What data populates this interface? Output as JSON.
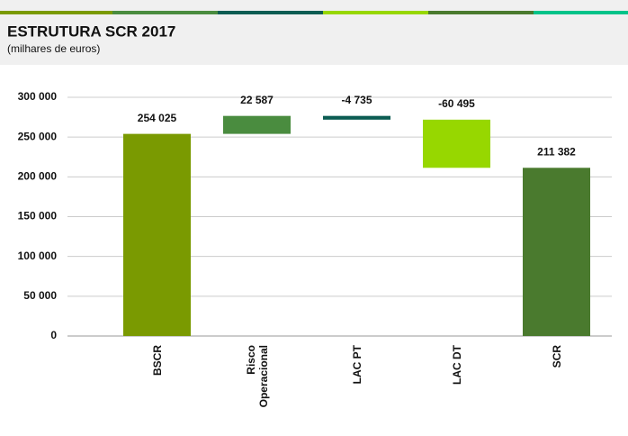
{
  "chart_data": {
    "type": "waterfall",
    "title": "ESTRUTURA SCR 2017",
    "subtitle": "(milhares de euros)",
    "categories": [
      "BSCR",
      "Risco\nOperacional",
      "LAC PT",
      "LAC DT",
      "SCR"
    ],
    "values": [
      254025,
      22587,
      -4735,
      -60495,
      211382
    ],
    "value_labels": [
      "254 025",
      "22 587",
      "-4 735",
      "-60 495",
      "211 382"
    ],
    "is_total": [
      true,
      false,
      false,
      false,
      true
    ],
    "colors": [
      "#7a9a01",
      "#4a8c3f",
      "#0b5c52",
      "#97d700",
      "#4a7a2e"
    ],
    "ylim": [
      0,
      300000
    ],
    "yticks": [
      0,
      {
        "value": 50000,
        "label": "50 000"
      },
      {
        "value": 100000,
        "label": "100 000"
      },
      {
        "value": 150000,
        "label": "150 000"
      },
      {
        "value": 200000,
        "label": "200 000"
      },
      {
        "value": 250000,
        "label": "250 000"
      },
      {
        "value": 300000,
        "label": "300 000"
      }
    ],
    "grid": true
  }
}
